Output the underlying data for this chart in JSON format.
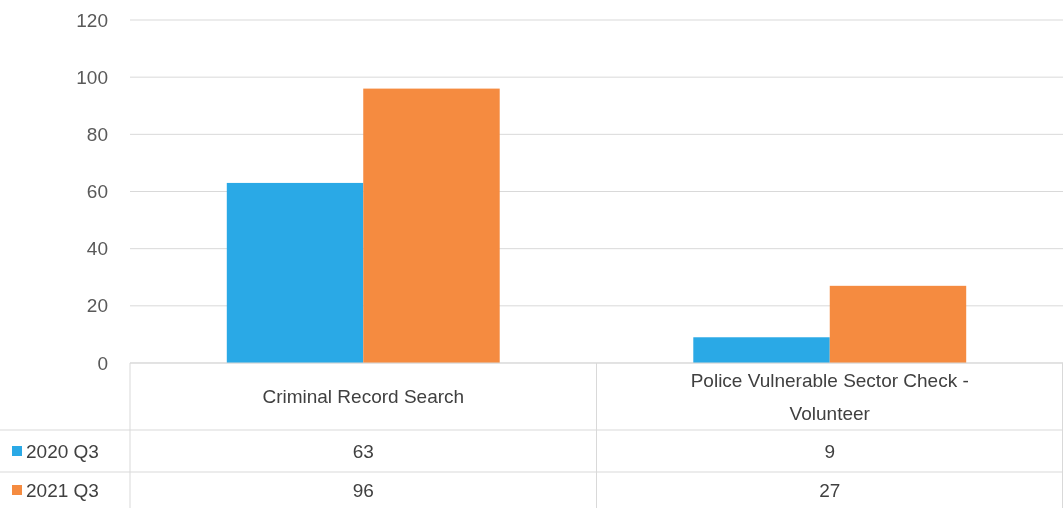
{
  "chart_data": {
    "type": "bar",
    "categories": [
      "Criminal Record Search",
      "Police Vulnerable Sector Check - Volunteer"
    ],
    "series": [
      {
        "name": "2020 Q3",
        "color": "#2aa9e6",
        "values": [
          63,
          9
        ]
      },
      {
        "name": "2021 Q3",
        "color": "#f58b40",
        "values": [
          96,
          27
        ]
      }
    ],
    "ylim": [
      0,
      120
    ],
    "yticks": [
      0,
      20,
      40,
      60,
      80,
      100,
      120
    ],
    "grid": "y",
    "legend": "bottom left",
    "data_labels": true
  }
}
